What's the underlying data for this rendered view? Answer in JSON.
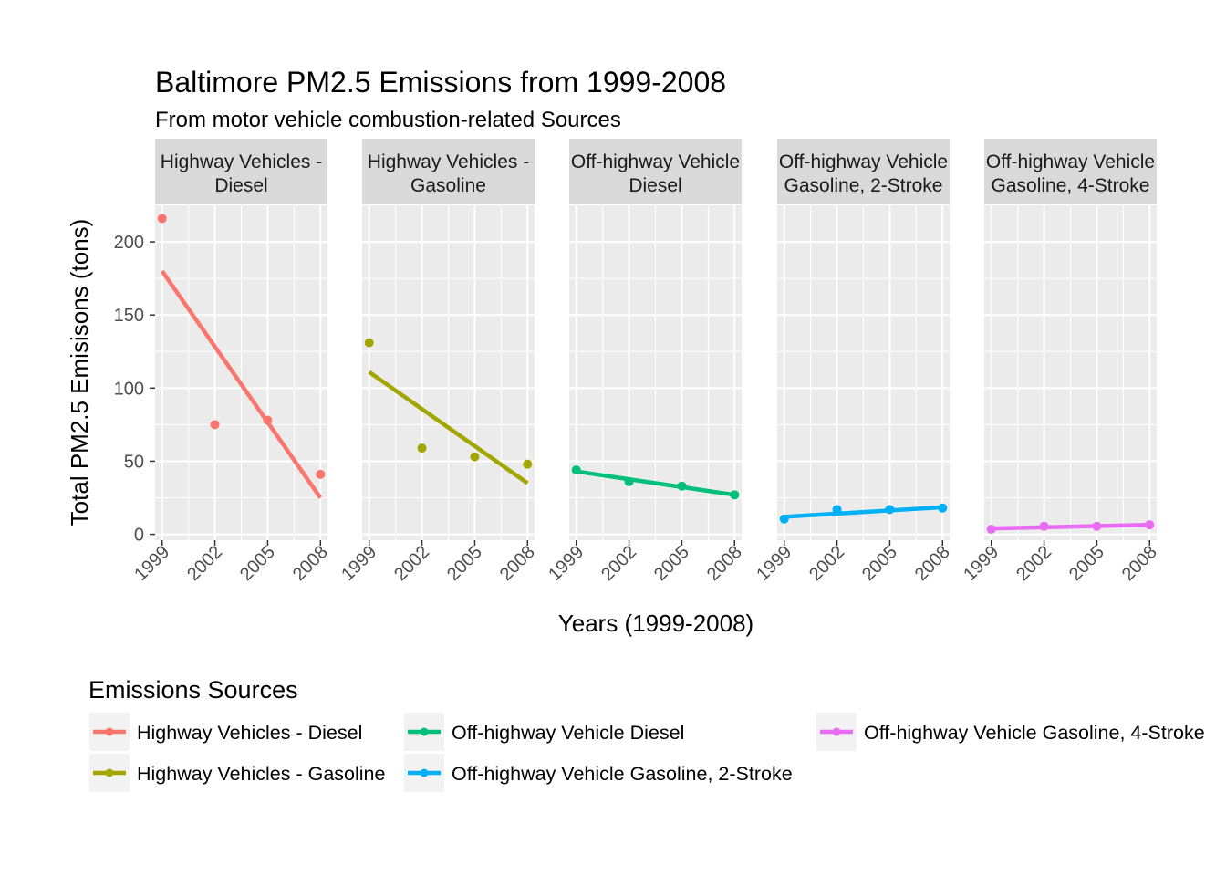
{
  "chart_data": {
    "type": "line",
    "title": "Baltimore PM2.5 Emissions from 1999-2008",
    "subtitle": "From motor vehicle combustion-related Sources",
    "xlabel": "Years (1999-2008)",
    "ylabel": "Total PM2.5 Emisisons (tons)",
    "x_ticks": [
      "1999",
      "2002",
      "2005",
      "2008"
    ],
    "y_ticks": [
      0,
      50,
      100,
      150,
      200
    ],
    "xlim": [
      1998.6,
      2008.4
    ],
    "ylim": [
      -4,
      225
    ],
    "grid": true,
    "legend_title": "Emissions Sources",
    "legend_position": "bottom",
    "panels": [
      {
        "strip": [
          "Highway Vehicles -",
          "Diesel"
        ],
        "series": "Highway Vehicles - Diesel",
        "color": "#F8766D",
        "x": [
          1999,
          2002,
          2005,
          2008
        ],
        "points": [
          216,
          75,
          78,
          41
        ],
        "trend": [
          180,
          25
        ]
      },
      {
        "strip": [
          "Highway Vehicles -",
          "Gasoline"
        ],
        "series": "Highway Vehicles - Gasoline",
        "color": "#A3A500",
        "x": [
          1999,
          2002,
          2005,
          2008
        ],
        "points": [
          131,
          59,
          53,
          48
        ],
        "trend": [
          111,
          35
        ]
      },
      {
        "strip": [
          "Off-highway Vehicle",
          "Diesel"
        ],
        "series": "Off-highway Vehicle Diesel",
        "color": "#00BF7D",
        "x": [
          1999,
          2002,
          2005,
          2008
        ],
        "points": [
          44,
          36,
          33,
          27
        ],
        "trend": [
          43,
          27
        ]
      },
      {
        "strip": [
          "Off-highway Vehicle",
          "Gasoline, 2-Stroke"
        ],
        "series": "Off-highway Vehicle Gasoline, 2-Stroke",
        "color": "#00B0F6",
        "x": [
          1999,
          2002,
          2005,
          2008
        ],
        "points": [
          10.5,
          17,
          17,
          18
        ],
        "trend": [
          12,
          18.5
        ]
      },
      {
        "strip": [
          "Off-highway Vehicle",
          "Gasoline, 4-Stroke"
        ],
        "series": "Off-highway Vehicle Gasoline, 4-Stroke",
        "color": "#E76BF3",
        "x": [
          1999,
          2002,
          2005,
          2008
        ],
        "points": [
          3.5,
          5.5,
          5.5,
          6.5
        ],
        "trend": [
          4,
          6.5
        ]
      }
    ],
    "legend_items": [
      {
        "label": "Highway Vehicles - Diesel",
        "color": "#F8766D"
      },
      {
        "label": "Highway Vehicles - Gasoline",
        "color": "#A3A500"
      },
      {
        "label": "Off-highway Vehicle Diesel",
        "color": "#00BF7D"
      },
      {
        "label": "Off-highway Vehicle Gasoline, 2-Stroke",
        "color": "#00B0F6"
      },
      {
        "label": "Off-highway Vehicle Gasoline, 4-Stroke",
        "color": "#E76BF3"
      }
    ]
  }
}
